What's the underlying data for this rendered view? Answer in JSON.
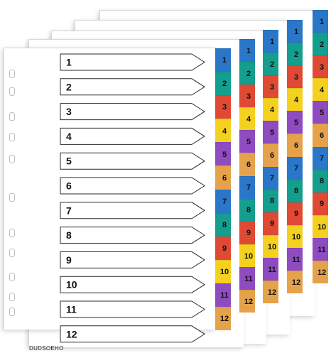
{
  "brand_text": "DUDSOEHO",
  "numbers": [
    "1",
    "2",
    "3",
    "4",
    "5",
    "6",
    "7",
    "8",
    "9",
    "10",
    "11",
    "12"
  ],
  "tab_colors": [
    "#2a77c9",
    "#149e8e",
    "#e04a35",
    "#f4d11f",
    "#8e4cc0",
    "#e5a24a",
    "#2a77c9",
    "#149e8e",
    "#e04a35",
    "#f4d11f",
    "#8e4cc0",
    "#e5a24a"
  ],
  "sheet_count": 5
}
